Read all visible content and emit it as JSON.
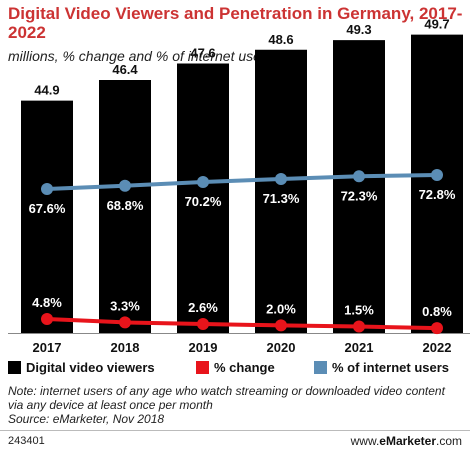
{
  "title": "Digital Video Viewers and Penetration in Germany, 2017-2022",
  "subtitle": "millions, % change and % of internet users",
  "note": "Note: internet users of any age who watch streaming or downloaded video content via any device at least once per month",
  "source": "Source: eMarketer, Nov 2018",
  "footer_id": "243401",
  "brand_prefix": "www.",
  "brand_name": "eMarketer",
  "brand_suffix": ".com",
  "colors": {
    "title": "#cc3333",
    "bars": "#000000",
    "change": "#e8141b",
    "penetration": "#5b8db5"
  },
  "legend": [
    {
      "label": "Digital video viewers",
      "color": "#000000"
    },
    {
      "label": "% change",
      "color": "#e8141b"
    },
    {
      "label": "% of internet users",
      "color": "#5b8db5"
    }
  ],
  "chart_data": {
    "type": "bar",
    "categories": [
      "2017",
      "2018",
      "2019",
      "2020",
      "2021",
      "2022"
    ],
    "series": [
      {
        "name": "Digital video viewers",
        "type": "bar",
        "values": [
          44.9,
          46.4,
          47.6,
          48.6,
          49.3,
          49.7
        ],
        "labels": [
          "44.9",
          "46.4",
          "47.6",
          "48.6",
          "49.3",
          "49.7"
        ]
      },
      {
        "name": "% change",
        "type": "line",
        "values": [
          4.8,
          3.3,
          2.6,
          2.0,
          1.5,
          0.8
        ],
        "labels": [
          "4.8%",
          "3.3%",
          "2.6%",
          "2.0%",
          "1.5%",
          "0.8%"
        ]
      },
      {
        "name": "% of internet users",
        "type": "line",
        "values": [
          67.6,
          68.8,
          70.2,
          71.3,
          72.3,
          72.8
        ],
        "labels": [
          "67.6%",
          "68.8%",
          "70.2%",
          "71.3%",
          "72.3%",
          "72.8%"
        ]
      }
    ],
    "grid": false,
    "legend_position": "bottom"
  }
}
